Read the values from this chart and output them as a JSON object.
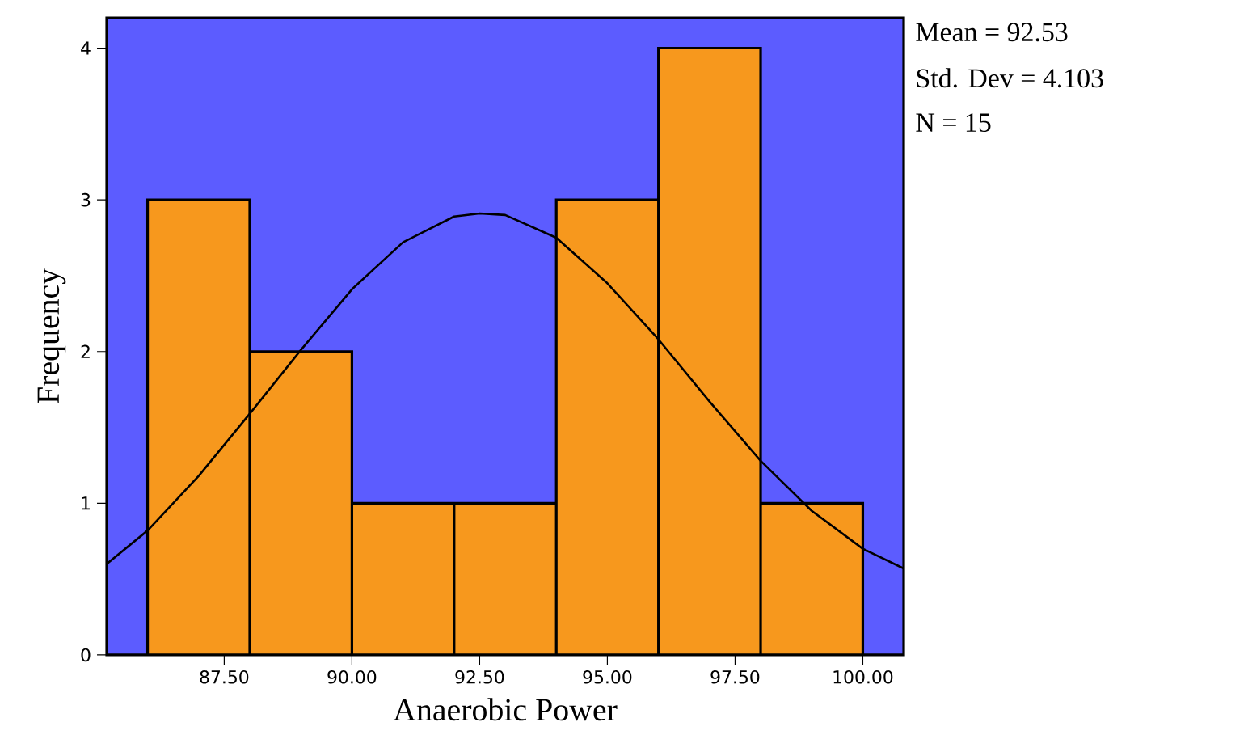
{
  "chart_data": {
    "type": "histogram",
    "xlabel": "Anaerobic Power",
    "ylabel": "Frequency",
    "bins": [
      86,
      88,
      90,
      92,
      94,
      96,
      98,
      100
    ],
    "values": [
      3,
      2,
      1,
      1,
      3,
      4,
      1
    ],
    "color": "#f7981d",
    "series": [
      {
        "type": "line",
        "color": "#000000",
        "x": [
          85.2,
          86,
          87,
          88,
          89,
          90,
          91,
          92,
          92.5,
          93,
          94,
          95,
          96,
          97,
          98,
          99,
          100,
          100.8
        ],
        "values": [
          0.6,
          0.82,
          1.18,
          1.59,
          2.01,
          2.41,
          2.72,
          2.89,
          2.91,
          2.9,
          2.75,
          2.45,
          2.08,
          1.67,
          1.28,
          0.95,
          0.7,
          0.57
        ]
      }
    ],
    "xlim": [
      85.2,
      100.8
    ],
    "ylim": [
      0,
      4.2
    ],
    "xticks": [
      {
        "value": 87.5,
        "label": "87.50"
      },
      {
        "value": 90,
        "label": "90.00"
      },
      {
        "value": 92.5,
        "label": "92.50"
      },
      {
        "value": 95,
        "label": "95.00"
      },
      {
        "value": 97.5,
        "label": "97.50"
      },
      {
        "value": 100,
        "label": "100.00"
      }
    ],
    "yticks": [
      0,
      1,
      2,
      3,
      4
    ],
    "annotations": [
      "Mean = 92.53",
      "Std. Dev = 4.103",
      "N = 15"
    ]
  }
}
